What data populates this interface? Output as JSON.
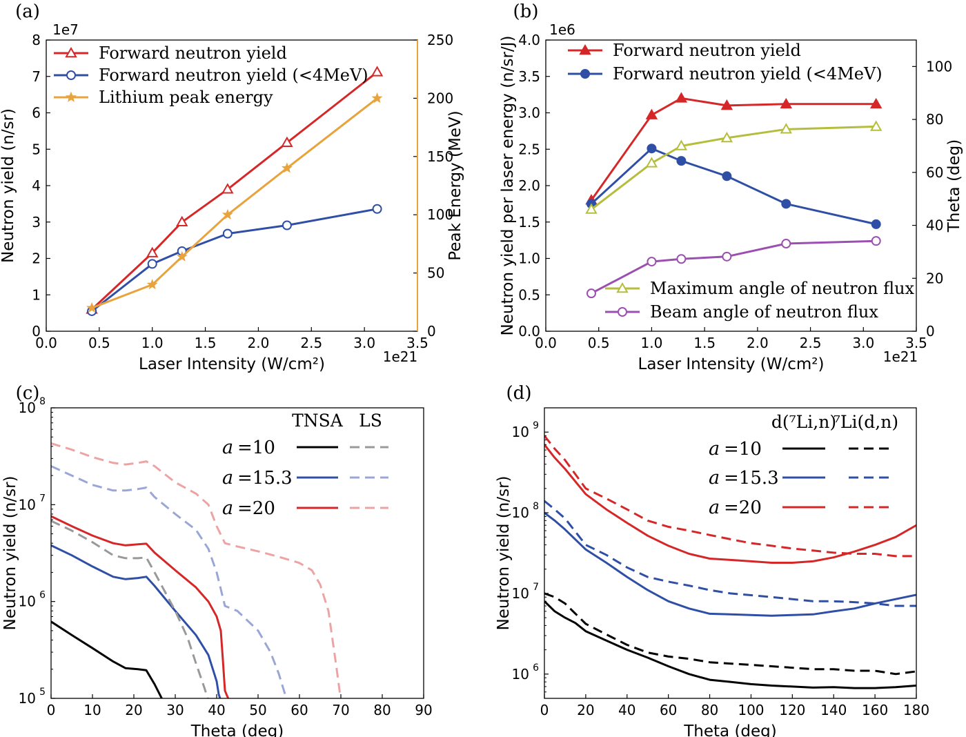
{
  "chart_data": [
    {
      "panel": "(a)",
      "type": "line",
      "xlabel": "Laser Intensity (W/cm²)",
      "xlim": [
        0,
        3.5
      ],
      "xticks": [
        0.0,
        0.5,
        1.0,
        1.5,
        2.0,
        2.5,
        3.0,
        3.5
      ],
      "xtick_labels": [
        "0.0",
        "0.5",
        "1.0",
        "1.5",
        "2.0",
        "2.5",
        "3.0",
        "3.5"
      ],
      "x_multiplier": "1e21",
      "ylabel": "Neutron yield (n/sr)",
      "ylim": [
        0,
        8
      ],
      "yticks": [
        0,
        1,
        2,
        3,
        4,
        5,
        6,
        7,
        8
      ],
      "ytick_labels": [
        "0",
        "1",
        "2",
        "3",
        "4",
        "5",
        "6",
        "7",
        "8"
      ],
      "y_multiplier": "1e7",
      "y2label": "Peak Energy (MeV)",
      "y2lim": [
        0,
        250
      ],
      "y2ticks": [
        0,
        50,
        100,
        150,
        200,
        250
      ],
      "y2tick_labels": [
        "0",
        "50",
        "100",
        "150",
        "200",
        "250"
      ],
      "legend_position": "top-left",
      "series": [
        {
          "name": "Forward neutron yield",
          "axis": "left",
          "color": "#d62728",
          "marker": "triangle-open",
          "x": [
            0.43,
            1.0,
            1.28,
            1.71,
            2.27,
            3.12
          ],
          "y": [
            0.6,
            2.15,
            3.0,
            3.9,
            5.18,
            7.12
          ]
        },
        {
          "name": "Forward neutron yield (<4MeV)",
          "axis": "left",
          "color": "#2e4fa5",
          "marker": "circle-open",
          "x": [
            0.43,
            1.0,
            1.28,
            1.71,
            2.27,
            3.12
          ],
          "y": [
            0.55,
            1.85,
            2.2,
            2.68,
            2.91,
            3.36
          ]
        },
        {
          "name": "Lithium peak energy",
          "axis": "right",
          "color": "#e8a33d",
          "marker": "star",
          "x": [
            0.43,
            1.0,
            1.28,
            1.71,
            2.27,
            3.12
          ],
          "y": [
            20,
            40,
            64,
            100,
            140,
            200
          ]
        }
      ]
    },
    {
      "panel": "(b)",
      "type": "line",
      "xlabel": "Laser Intensity (W/cm²)",
      "xlim": [
        0,
        3.5
      ],
      "xticks": [
        0.0,
        0.5,
        1.0,
        1.5,
        2.0,
        2.5,
        3.0,
        3.5
      ],
      "xtick_labels": [
        "0.0",
        "0.5",
        "1.0",
        "1.5",
        "2.0",
        "2.5",
        "3.0",
        "3.5"
      ],
      "x_multiplier": "1e21",
      "ylabel": "Neutron yield per laser energy (n/sr/J)",
      "ylim": [
        0,
        4
      ],
      "yticks": [
        0,
        0.5,
        1.0,
        1.5,
        2.0,
        2.5,
        3.0,
        3.5,
        4.0
      ],
      "ytick_labels": [
        "0.0",
        "0.5",
        "1.0",
        "1.5",
        "2.0",
        "2.5",
        "3.0",
        "3.5",
        "4.0"
      ],
      "y_multiplier": "1e6",
      "y2label": "Theta (deg)",
      "y2lim": [
        0,
        110
      ],
      "y2ticks": [
        0,
        20,
        40,
        60,
        80,
        100
      ],
      "y2tick_labels": [
        "0",
        "20",
        "40",
        "60",
        "80",
        "100"
      ],
      "series": [
        {
          "name": "Forward neutron yield",
          "axis": "left",
          "color": "#d62728",
          "marker": "triangle-filled",
          "x": [
            0.43,
            1.0,
            1.28,
            1.71,
            2.27,
            3.12
          ],
          "y": [
            1.8,
            2.97,
            3.2,
            3.1,
            3.12,
            3.12
          ]
        },
        {
          "name": "Forward neutron yield (<4MeV)",
          "axis": "left",
          "color": "#2e4fa5",
          "marker": "circle-filled",
          "x": [
            0.43,
            1.0,
            1.28,
            1.71,
            2.27,
            3.12
          ],
          "y": [
            1.75,
            2.51,
            2.34,
            2.13,
            1.75,
            1.47
          ]
        },
        {
          "name": "Maximum angle of neutron flux",
          "axis": "right",
          "color": "#b5bd3c",
          "marker": "triangle-open",
          "x": [
            0.43,
            1.0,
            1.28,
            1.71,
            2.27,
            3.12
          ],
          "y": [
            46,
            63.5,
            70,
            73,
            76.3,
            77.3
          ]
        },
        {
          "name": "Beam angle of neutron flux",
          "axis": "right",
          "color": "#9b4fb0",
          "marker": "circle-open",
          "x": [
            0.43,
            1.0,
            1.28,
            1.71,
            2.27,
            3.12
          ],
          "y": [
            14.3,
            26.3,
            27.3,
            28.2,
            33.1,
            34.1
          ]
        }
      ]
    },
    {
      "panel": "(c)",
      "type": "line",
      "xlabel": "Theta (deg)",
      "xlim": [
        0,
        90
      ],
      "xticks": [
        0,
        10,
        20,
        30,
        40,
        50,
        60,
        70,
        80,
        90
      ],
      "xtick_labels": [
        "0",
        "10",
        "20",
        "30",
        "40",
        "50",
        "60",
        "70",
        "80",
        "90"
      ],
      "ylabel": "Neutron yield (n/sr)",
      "yscale": "log",
      "ylim": [
        100000,
        100000000
      ],
      "yticks": [
        100000,
        1000000,
        10000000,
        100000000
      ],
      "ytick_labels": [
        "10",
        "10",
        "10",
        "10"
      ],
      "ytick_exponents": [
        "5",
        "6",
        "7",
        "8"
      ],
      "legend_headers": [
        "TNSA",
        "LS"
      ],
      "legend_rows": [
        {
          "symbol": "a",
          "label": "=10"
        },
        {
          "symbol": "a",
          "label": "=15.3"
        },
        {
          "symbol": "a",
          "label": "=20"
        }
      ],
      "series": [
        {
          "group": "TNSA",
          "row": 0,
          "color": "#000000",
          "dash": "solid",
          "x": [
            0,
            5,
            10,
            15,
            18,
            21,
            23,
            25,
            27
          ],
          "y": [
            620000,
            450000,
            330000,
            240000,
            205000,
            200000,
            195000,
            140000,
            95000
          ]
        },
        {
          "group": "TNSA",
          "row": 1,
          "color": "#2e4fa5",
          "dash": "solid",
          "x": [
            0,
            5,
            10,
            15,
            18,
            21,
            23,
            25,
            30,
            35,
            38,
            40,
            40.5,
            41
          ],
          "y": [
            3800000,
            3000000,
            2300000,
            1800000,
            1700000,
            1750000,
            1800000,
            1450000,
            800000,
            450000,
            280000,
            150000,
            110000,
            95000
          ]
        },
        {
          "group": "TNSA",
          "row": 2,
          "color": "#d62728",
          "dash": "solid",
          "x": [
            0,
            5,
            10,
            15,
            18,
            21,
            23,
            25,
            30,
            35,
            38,
            40,
            41,
            41.5,
            42,
            43
          ],
          "y": [
            7600000,
            6000000,
            4800000,
            4000000,
            3800000,
            3900000,
            3950000,
            3200000,
            2100000,
            1400000,
            1000000,
            700000,
            500000,
            250000,
            120000,
            95000
          ]
        },
        {
          "group": "LS",
          "row": 0,
          "color": "#999999",
          "dash": "dashed",
          "x": [
            0,
            5,
            10,
            15,
            18,
            21,
            23,
            25,
            30,
            33,
            35,
            37,
            38
          ],
          "y": [
            6800000,
            5400000,
            4100000,
            3000000,
            2800000,
            2800000,
            2850000,
            2000000,
            800000,
            420000,
            230000,
            130000,
            95000
          ]
        },
        {
          "group": "LS",
          "row": 1,
          "color": "#9aa6d6",
          "dash": "dashed",
          "x": [
            0,
            5,
            10,
            15,
            18,
            21,
            23,
            25,
            30,
            35,
            38,
            40,
            42,
            45,
            50,
            53,
            55,
            56,
            57
          ],
          "y": [
            25000000,
            20000000,
            16000000,
            14000000,
            14000000,
            14500000,
            15000000,
            12000000,
            8000000,
            5500000,
            3500000,
            2000000,
            900000,
            800000,
            500000,
            300000,
            180000,
            130000,
            95000
          ]
        },
        {
          "group": "LS",
          "row": 2,
          "color": "#eda3a3",
          "dash": "dashed",
          "x": [
            0,
            5,
            10,
            15,
            18,
            21,
            23,
            25,
            30,
            35,
            38,
            40,
            42,
            45,
            50,
            55,
            60,
            63,
            65,
            67,
            68,
            69,
            70
          ],
          "y": [
            43000000,
            37000000,
            31000000,
            27000000,
            26000000,
            27000000,
            28000000,
            25000000,
            17000000,
            13000000,
            10000000,
            6000000,
            4000000,
            3700000,
            3300000,
            2900000,
            2500000,
            2100000,
            1500000,
            800000,
            400000,
            200000,
            95000
          ]
        }
      ]
    },
    {
      "panel": "(d)",
      "type": "line",
      "xlabel": "Theta (deg)",
      "xlim": [
        0,
        180
      ],
      "xticks": [
        0,
        20,
        40,
        60,
        80,
        100,
        120,
        140,
        160,
        180
      ],
      "xtick_labels": [
        "0",
        "20",
        "40",
        "60",
        "80",
        "100",
        "120",
        "140",
        "160",
        "180"
      ],
      "ylabel": "Neutron yield (n/sr)",
      "yscale": "log",
      "ylim": [
        500000,
        2000000000
      ],
      "yticks": [
        1000000,
        10000000,
        100000000,
        1000000000
      ],
      "ytick_labels": [
        "10",
        "10",
        "10",
        "10"
      ],
      "ytick_exponents": [
        "6",
        "7",
        "8",
        "9"
      ],
      "legend_headers": [
        "d(⁷Li,n)",
        "⁷Li(d,n)"
      ],
      "legend_rows": [
        {
          "symbol": "a",
          "label": "=10"
        },
        {
          "symbol": "a",
          "label": "=15.3"
        },
        {
          "symbol": "a",
          "label": "=20"
        }
      ],
      "series": [
        {
          "group": "d(7Li,n)",
          "row": 0,
          "color": "#000000",
          "dash": "solid",
          "x": [
            0,
            5,
            10,
            15,
            20,
            30,
            40,
            50,
            60,
            70,
            80,
            90,
            100,
            110,
            120,
            130,
            140,
            150,
            160,
            170,
            180
          ],
          "y": [
            8000000,
            6000000,
            5000000,
            4300000,
            3400000,
            2600000,
            2000000,
            1600000,
            1250000,
            1000000,
            850000,
            800000,
            750000,
            720000,
            700000,
            680000,
            690000,
            670000,
            670000,
            690000,
            720000
          ]
        },
        {
          "group": "d(7Li,n)",
          "row": 1,
          "color": "#2e4fa5",
          "dash": "solid",
          "x": [
            0,
            5,
            10,
            20,
            30,
            40,
            50,
            60,
            70,
            80,
            90,
            100,
            110,
            120,
            130,
            140,
            150,
            160,
            170,
            180
          ],
          "y": [
            100000000,
            80000000,
            62000000,
            35000000,
            24000000,
            16000000,
            11000000,
            8000000,
            6500000,
            5600000,
            5500000,
            5400000,
            5300000,
            5400000,
            5500000,
            6000000,
            6500000,
            7500000,
            8500000,
            9600000
          ]
        },
        {
          "group": "d(7Li,n)",
          "row": 2,
          "color": "#d62728",
          "dash": "solid",
          "x": [
            0,
            5,
            10,
            20,
            30,
            40,
            50,
            60,
            70,
            80,
            90,
            100,
            110,
            120,
            130,
            140,
            150,
            160,
            170,
            180
          ],
          "y": [
            700000000,
            480000000,
            350000000,
            170000000,
            110000000,
            75000000,
            52000000,
            39000000,
            31000000,
            27000000,
            26000000,
            25000000,
            24000000,
            24000000,
            25000000,
            28000000,
            33000000,
            40000000,
            50000000,
            70000000
          ]
        },
        {
          "group": "7Li(d,n)",
          "row": 0,
          "color": "#000000",
          "dash": "dashed",
          "x": [
            0,
            5,
            10,
            20,
            30,
            40,
            50,
            60,
            70,
            80,
            90,
            100,
            110,
            120,
            130,
            140,
            150,
            160,
            170,
            180
          ],
          "y": [
            10000000,
            9000000,
            7500000,
            4200000,
            3100000,
            2300000,
            1850000,
            1650000,
            1550000,
            1400000,
            1350000,
            1300000,
            1250000,
            1200000,
            1150000,
            1150000,
            1100000,
            1100000,
            1000000,
            1080000
          ]
        },
        {
          "group": "7Li(d,n)",
          "row": 1,
          "color": "#2e4fa5",
          "dash": "dashed",
          "x": [
            0,
            5,
            10,
            20,
            30,
            40,
            50,
            60,
            70,
            80,
            90,
            100,
            110,
            120,
            130,
            140,
            150,
            160,
            170,
            180
          ],
          "y": [
            140000000,
            110000000,
            85000000,
            40000000,
            30000000,
            21000000,
            16000000,
            14000000,
            12500000,
            11000000,
            10000000,
            9500000,
            9000000,
            8500000,
            8000000,
            8000000,
            7800000,
            7500000,
            7000000,
            7000000
          ]
        },
        {
          "group": "7Li(d,n)",
          "row": 2,
          "color": "#d62728",
          "dash": "dashed",
          "x": [
            0,
            5,
            10,
            20,
            30,
            40,
            50,
            60,
            70,
            80,
            90,
            100,
            110,
            120,
            130,
            140,
            150,
            160,
            170,
            180
          ],
          "y": [
            900000000,
            620000000,
            450000000,
            200000000,
            150000000,
            110000000,
            80000000,
            67000000,
            60000000,
            53000000,
            47000000,
            42000000,
            39000000,
            36000000,
            34000000,
            32000000,
            31000000,
            31000000,
            29000000,
            29000000
          ]
        }
      ]
    }
  ]
}
